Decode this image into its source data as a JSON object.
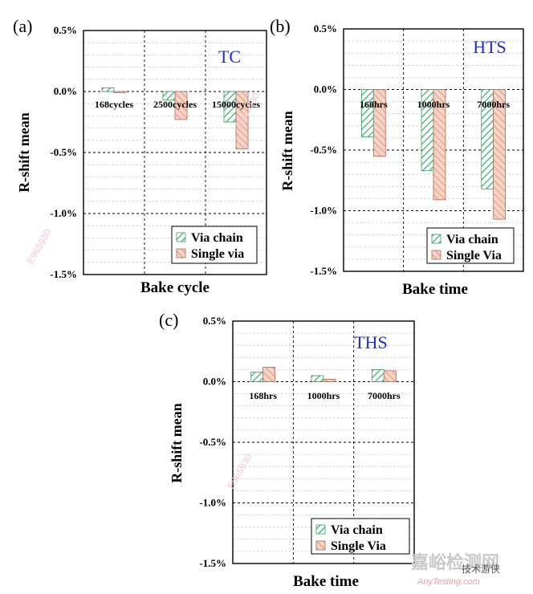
{
  "chart_data": [
    {
      "panel": "(a)",
      "type": "bar",
      "test_name": "TC",
      "title": "",
      "xlabel": "Bake cycle",
      "ylabel": "R-shift mean",
      "ylim": [
        -1.5,
        0.5
      ],
      "yticks": [
        0.5,
        0.0,
        -0.5,
        -1.0,
        -1.5
      ],
      "ytick_labels": [
        "0.5%",
        "0.0%",
        "-0.5%",
        "-1.0%",
        "-1.5%"
      ],
      "categories": [
        "168cycles",
        "2500cycles",
        "15000cycles"
      ],
      "series": [
        {
          "name": "Via chain",
          "values": [
            0.03,
            -0.07,
            -0.25
          ],
          "color": "#3cb371"
        },
        {
          "name": "Single via",
          "values": [
            -0.01,
            -0.23,
            -0.47
          ],
          "color": "#e8927c"
        }
      ],
      "legend": "bottom-right",
      "watermark": "E965930"
    },
    {
      "panel": "(b)",
      "type": "bar",
      "test_name": "HTS",
      "title": "",
      "xlabel": "Bake time",
      "ylabel": "R-shift mean",
      "ylim": [
        -1.5,
        0.5
      ],
      "yticks": [
        0.5,
        0.0,
        -0.5,
        -1.0,
        -1.5
      ],
      "ytick_labels": [
        "0.5%",
        "0.0%",
        "-0.5%",
        "-1.0%",
        "-1.5%"
      ],
      "categories": [
        "168hrs",
        "1000hrs",
        "7000hrs"
      ],
      "series": [
        {
          "name": "Via chain",
          "values": [
            -0.39,
            -0.67,
            -0.82
          ],
          "color": "#3cb371"
        },
        {
          "name": "Single Via",
          "values": [
            -0.55,
            -0.91,
            -1.07
          ],
          "color": "#e8927c"
        }
      ],
      "legend": "bottom-right",
      "watermark": "E965930"
    },
    {
      "panel": "(c)",
      "type": "bar",
      "test_name": "THS",
      "title": "",
      "xlabel": "Bake time",
      "ylabel": "R-shift mean",
      "ylim": [
        -1.5,
        0.5
      ],
      "yticks": [
        0.5,
        0.0,
        -0.5,
        -1.0,
        -1.5
      ],
      "ytick_labels": [
        "0.5%",
        "0.0%",
        "-0.5%",
        "-1.0%",
        "-1.5%"
      ],
      "categories": [
        "168hrs",
        "1000hrs",
        "7000hrs"
      ],
      "series": [
        {
          "name": "Via chain",
          "values": [
            0.08,
            0.05,
            0.1
          ],
          "color": "#3cb371"
        },
        {
          "name": "Single Via",
          "values": [
            0.12,
            0.02,
            0.09
          ],
          "color": "#e8927c"
        }
      ],
      "legend": "bottom-right",
      "watermark": "E965930"
    }
  ],
  "footer": {
    "site_name": "嘉峪检测网",
    "site_url": "AnyTesting.com",
    "account": "技术游侠"
  }
}
